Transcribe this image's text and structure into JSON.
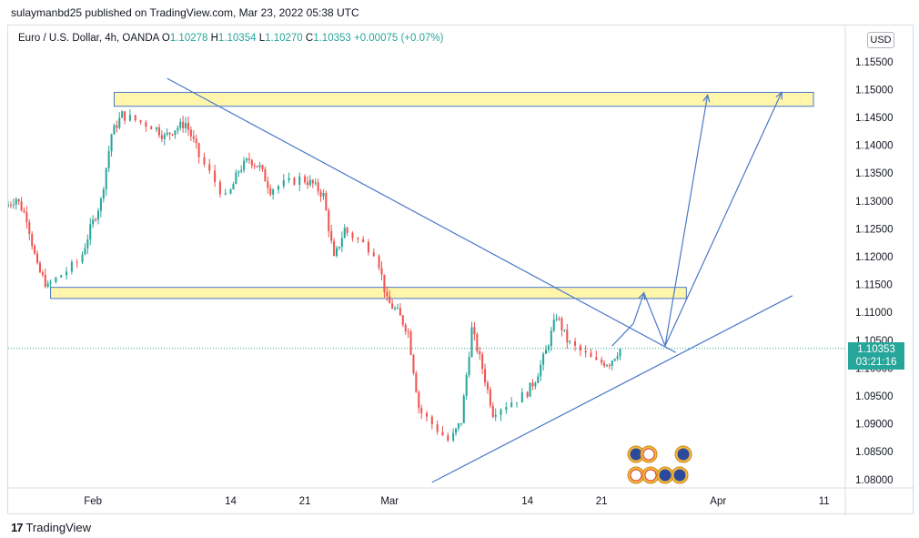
{
  "publish_line": "sulaymanbd25 published on TradingView.com, Mar 23, 2022 05:38 UTC",
  "symbol_legend": {
    "name": "Euro / U.S. Dollar, 4h, OANDA",
    "o_label": "O",
    "o_value": "1.10278",
    "h_label": "H",
    "h_value": "1.10354",
    "l_label": "L",
    "l_value": "1.10270",
    "c_label": "C",
    "c_value": "1.10353",
    "change": "+0.00075 (+0.07%)"
  },
  "currency": "USD",
  "last_price": "1.10353",
  "countdown": "03:21:16",
  "brand": "TradingView",
  "colors": {
    "up": "#26a69a",
    "down": "#ef5350",
    "trendline": "#4a78c8",
    "zone_fill": "#fff59d",
    "zone_border": "#4a78c8",
    "last_price_line": "#26a69a"
  },
  "chart_data": {
    "type": "candlestick",
    "title": "Euro / U.S. Dollar, 4h, OANDA",
    "timeframe": "4h",
    "x_range": [
      "2022-01-24",
      "2022-04-13"
    ],
    "ylim": [
      1.0785,
      1.1615
    ],
    "y_ticks": [
      "1.08000",
      "1.08500",
      "1.09000",
      "1.09500",
      "1.10000",
      "1.10500",
      "1.11000",
      "1.11500",
      "1.12000",
      "1.12500",
      "1.13000",
      "1.13500",
      "1.14000",
      "1.14500",
      "1.15000",
      "1.15500"
    ],
    "x_ticks": [
      {
        "date": "2022-02-01",
        "label": "Feb"
      },
      {
        "date": "2022-02-14",
        "label": "14"
      },
      {
        "date": "2022-02-21",
        "label": "21"
      },
      {
        "date": "2022-03-01",
        "label": "Mar"
      },
      {
        "date": "2022-03-14",
        "label": "14"
      },
      {
        "date": "2022-03-21",
        "label": "21"
      },
      {
        "date": "2022-04-01",
        "label": "Apr"
      },
      {
        "date": "2022-04-11",
        "label": "11"
      }
    ],
    "price_path": [
      [
        "2022-01-24",
        1.129
      ],
      [
        "2022-01-25",
        1.1305
      ],
      [
        "2022-01-26",
        1.127
      ],
      [
        "2022-01-27",
        1.118
      ],
      [
        "2022-01-28",
        1.1145
      ],
      [
        "2022-01-31",
        1.119
      ],
      [
        "2022-02-01",
        1.125
      ],
      [
        "2022-02-02",
        1.13
      ],
      [
        "2022-02-03",
        1.142
      ],
      [
        "2022-02-04",
        1.1455
      ],
      [
        "2022-02-07",
        1.1435
      ],
      [
        "2022-02-08",
        1.1415
      ],
      [
        "2022-02-09",
        1.143
      ],
      [
        "2022-02-10",
        1.144
      ],
      [
        "2022-02-11",
        1.1395
      ],
      [
        "2022-02-14",
        1.1305
      ],
      [
        "2022-02-15",
        1.1355
      ],
      [
        "2022-02-16",
        1.1375
      ],
      [
        "2022-02-17",
        1.136
      ],
      [
        "2022-02-18",
        1.132
      ],
      [
        "2022-02-21",
        1.134
      ],
      [
        "2022-02-22",
        1.133
      ],
      [
        "2022-02-23",
        1.131
      ],
      [
        "2022-02-24",
        1.1195
      ],
      [
        "2022-02-25",
        1.125
      ],
      [
        "2022-02-28",
        1.121
      ],
      [
        "2022-03-01",
        1.112
      ],
      [
        "2022-03-02",
        1.11
      ],
      [
        "2022-03-03",
        1.1065
      ],
      [
        "2022-03-04",
        1.093
      ],
      [
        "2022-03-07",
        1.087
      ],
      [
        "2022-03-08",
        1.0905
      ],
      [
        "2022-03-09",
        1.107
      ],
      [
        "2022-03-10",
        1.1
      ],
      [
        "2022-03-11",
        1.092
      ],
      [
        "2022-03-14",
        1.095
      ],
      [
        "2022-03-15",
        1.098
      ],
      [
        "2022-03-16",
        1.103
      ],
      [
        "2022-03-17",
        1.1095
      ],
      [
        "2022-03-18",
        1.105
      ],
      [
        "2022-03-21",
        1.101
      ],
      [
        "2022-03-22",
        1.101
      ],
      [
        "2022-03-23",
        1.1035
      ]
    ],
    "last_close": 1.10353,
    "zones": [
      {
        "from": "2022-02-03",
        "to": "2022-04-10",
        "low": 1.147,
        "high": 1.1495
      },
      {
        "from": "2022-01-28",
        "to": "2022-03-29",
        "low": 1.1125,
        "high": 1.1145
      }
    ],
    "trendlines": [
      {
        "kind": "descending resistance",
        "points": [
          [
            "2022-02-08",
            1.152
          ],
          [
            "2022-03-28",
            1.1028
          ]
        ]
      },
      {
        "kind": "ascending support",
        "points": [
          [
            "2022-03-05",
            1.0795
          ],
          [
            "2022-04-08",
            1.113
          ]
        ]
      }
    ],
    "projection_path": [
      [
        "2022-03-22",
        1.104
      ],
      [
        "2022-03-24",
        1.108
      ],
      [
        "2022-03-25",
        1.1135
      ],
      [
        "2022-03-27",
        1.104
      ],
      [
        "2022-03-31",
        1.149
      ]
    ],
    "projection_path_2": [
      [
        "2022-03-27",
        1.104
      ],
      [
        "2022-04-07",
        1.1495
      ]
    ],
    "event_icons": [
      "eu-flag",
      "us-flag",
      "eu-flag",
      "us-flag",
      "us-flag",
      "eu-flag",
      "eu-flag"
    ]
  }
}
